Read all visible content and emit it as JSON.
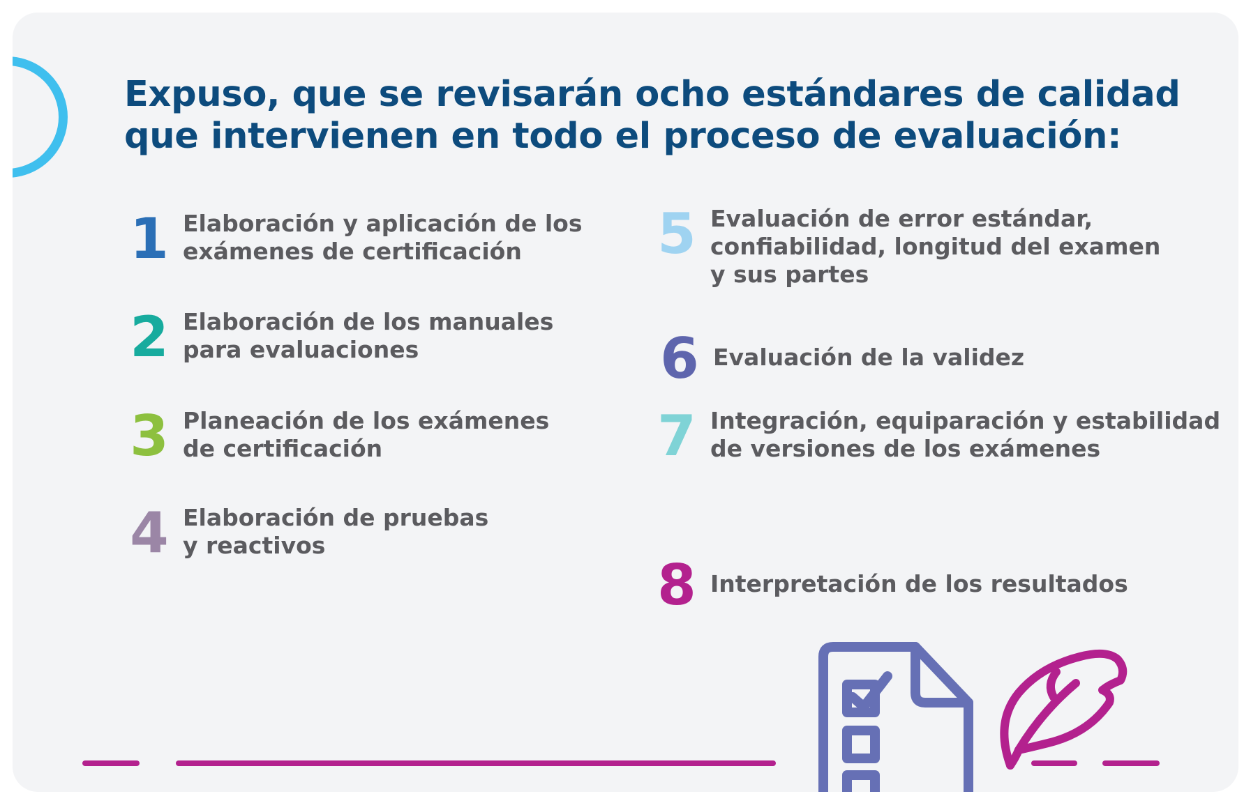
{
  "title": {
    "line1": "Expuso, que se revisarán ocho estándares de calidad",
    "line2": "que intervienen en todo el proceso de evaluación:"
  },
  "items": [
    {
      "number": "1",
      "color": "#2b6fb6",
      "lines": [
        "Elaboración y aplicación de los",
        "exámenes de certificación"
      ]
    },
    {
      "number": "2",
      "color": "#17ab9e",
      "lines": [
        "Elaboración de los manuales",
        "para evaluaciones"
      ]
    },
    {
      "number": "3",
      "color": "#8dc03f",
      "lines": [
        "Planeación de los exámenes",
        "de certificación"
      ]
    },
    {
      "number": "4",
      "color": "#9b86a6",
      "lines": [
        "Elaboración de pruebas",
        "y reactivos"
      ]
    },
    {
      "number": "5",
      "color": "#9fd3f1",
      "lines": [
        "Evaluación de error estándar,",
        "confiabilidad, longitud del examen",
        "y sus partes"
      ]
    },
    {
      "number": "6",
      "color": "#5e65ad",
      "lines": [
        "Evaluación de la validez"
      ]
    },
    {
      "number": "7",
      "color": "#7fd3d6",
      "lines": [
        "Integración, equiparación y estabilidad",
        "de versiones de los exámenes"
      ]
    },
    {
      "number": "8",
      "color": "#b3218e",
      "lines": [
        "Interpretación de los resultados"
      ]
    }
  ],
  "icons": {
    "checklist": "checklist-document-icon",
    "quill": "feather-quill-icon"
  },
  "colors": {
    "title": "#0d4b7d",
    "text": "#5b5b5f",
    "accent_ring": "#3fbfee",
    "checklist": "#6670b5",
    "accent_line": "#b3218e",
    "card_background": "#f3f4f6"
  }
}
